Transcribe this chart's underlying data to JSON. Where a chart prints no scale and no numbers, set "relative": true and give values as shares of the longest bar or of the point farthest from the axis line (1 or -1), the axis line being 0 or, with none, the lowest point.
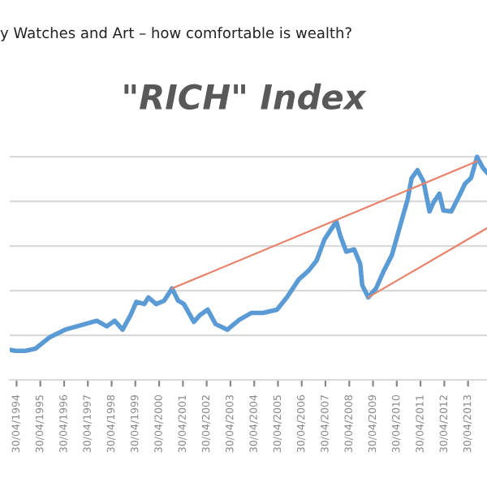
{
  "chart_data": {
    "type": "line",
    "title": "\"RICH\" Index",
    "subtitle": "y Watches and Art – how comfortable is wealth?",
    "relative": true,
    "grid": "y",
    "tick_labels": "x",
    "xlim": [
      "1994-01",
      "2014-02"
    ],
    "xticks": [
      {
        "value": "1994-04-30",
        "label": "30/04/1994"
      },
      {
        "value": "1995-04-30",
        "label": "30/04/1995"
      },
      {
        "value": "1996-04-30",
        "label": "30/04/1996"
      },
      {
        "value": "1997-04-30",
        "label": "30/04/1997"
      },
      {
        "value": "1998-04-30",
        "label": "30/04/1998"
      },
      {
        "value": "1999-04-30",
        "label": "30/04/1999"
      },
      {
        "value": "2000-04-30",
        "label": "30/04/2000"
      },
      {
        "value": "2001-04-30",
        "label": "30/04/2001"
      },
      {
        "value": "2002-04-30",
        "label": "30/04/2002"
      },
      {
        "value": "2003-04-30",
        "label": "30/04/2003"
      },
      {
        "value": "2004-04-30",
        "label": "30/04/2004"
      },
      {
        "value": "2005-04-30",
        "label": "30/04/2005"
      },
      {
        "value": "2006-04-30",
        "label": "30/04/2006"
      },
      {
        "value": "2007-04-30",
        "label": "30/04/2007"
      },
      {
        "value": "2008-04-30",
        "label": "30/04/2008"
      },
      {
        "value": "2009-04-30",
        "label": "30/04/2009"
      },
      {
        "value": "2010-04-30",
        "label": "30/04/2010"
      },
      {
        "value": "2011-04-30",
        "label": "30/04/2011"
      },
      {
        "value": "2012-04-30",
        "label": "30/04/2012"
      },
      {
        "value": "2013-04-30",
        "label": "30/04/2013"
      }
    ],
    "series": [
      {
        "color": "#5b9bd5",
        "x": [
          "1994-01",
          "1994-04",
          "1994-09",
          "1995-02",
          "1995-09",
          "1996-05",
          "1997-01",
          "1997-09",
          "1998-02",
          "1998-06",
          "1998-10",
          "1999-02",
          "1999-05",
          "1999-09",
          "1999-11",
          "2000-03",
          "2000-07",
          "2000-11",
          "2001-02",
          "2001-05",
          "2001-10",
          "2002-01",
          "2002-05",
          "2002-09",
          "2003-03",
          "2003-09",
          "2004-03",
          "2004-09",
          "2005-04",
          "2005-09",
          "2006-03",
          "2006-08",
          "2006-12",
          "2007-04",
          "2007-07",
          "2007-10",
          "2007-12",
          "2008-03",
          "2008-07",
          "2008-10",
          "2008-11",
          "2009-02",
          "2009-06",
          "2009-10",
          "2010-02",
          "2010-06",
          "2010-10",
          "2010-12",
          "2011-03",
          "2011-06",
          "2011-09",
          "2011-11",
          "2012-02",
          "2012-04",
          "2012-08",
          "2012-12",
          "2013-03",
          "2013-06",
          "2013-09",
          "2013-12",
          "2014-02"
        ],
        "values": [
          0.135,
          0.13,
          0.13,
          0.14,
          0.19,
          0.225,
          0.245,
          0.265,
          0.24,
          0.265,
          0.225,
          0.29,
          0.35,
          0.34,
          0.37,
          0.34,
          0.355,
          0.41,
          0.355,
          0.34,
          0.26,
          0.29,
          0.315,
          0.25,
          0.225,
          0.27,
          0.3,
          0.3,
          0.315,
          0.37,
          0.45,
          0.49,
          0.535,
          0.63,
          0.67,
          0.71,
          0.645,
          0.575,
          0.585,
          0.52,
          0.425,
          0.37,
          0.41,
          0.49,
          0.56,
          0.685,
          0.81,
          0.905,
          0.94,
          0.89,
          0.755,
          0.795,
          0.835,
          0.76,
          0.755,
          0.825,
          0.88,
          0.905,
          1.0,
          0.95,
          0.93
        ]
      },
      {
        "color": "#e8836b",
        "x": [
          "2000-11",
          "2013-09"
        ],
        "values": [
          0.41,
          0.98
        ]
      },
      {
        "color": "#e8836b",
        "x": [
          "2009-02",
          "2014-02"
        ],
        "values": [
          0.37,
          0.68
        ]
      }
    ]
  }
}
